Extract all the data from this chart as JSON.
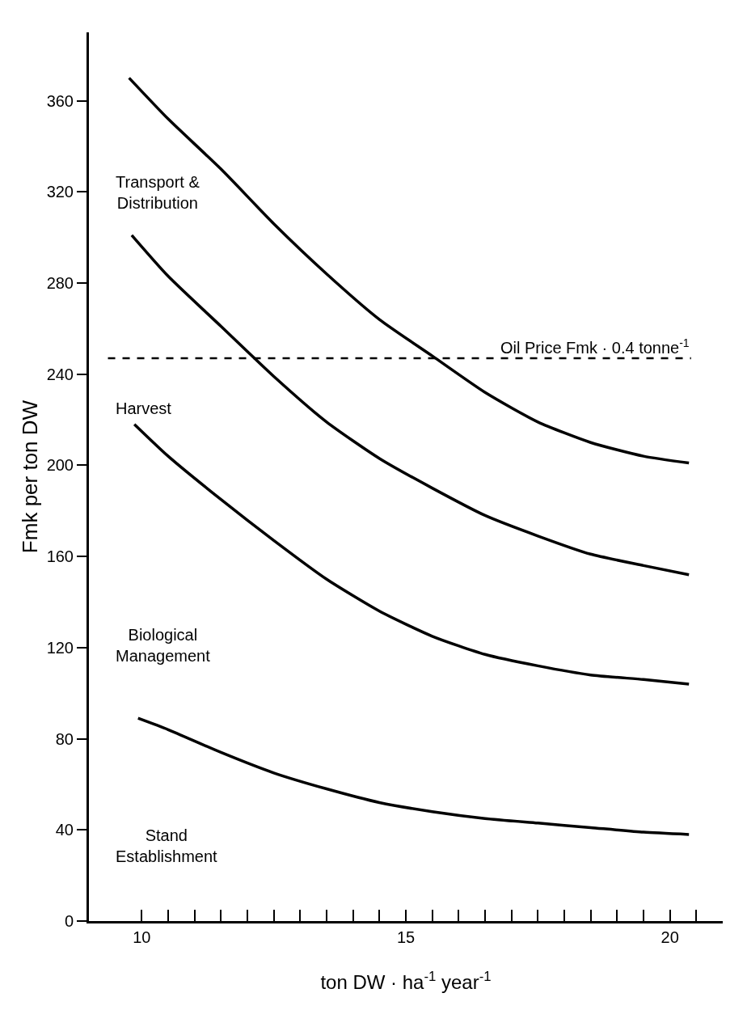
{
  "chart_data": {
    "type": "line",
    "xlabel": "ton DW · ha$^{-1}$ year$^{-1}$",
    "ylabel": "Fmk per ton DW",
    "xlim": [
      9,
      21
    ],
    "xticks": [
      10,
      {
        "value": 10.5,
        "label": null
      },
      {
        "value": 11,
        "label": null
      },
      {
        "value": 11.5,
        "label": null
      },
      {
        "value": 12,
        "label": null
      },
      {
        "value": 12.5,
        "label": null
      },
      {
        "value": 13,
        "label": null
      },
      {
        "value": 13.5,
        "label": null
      },
      {
        "value": 14,
        "label": null
      },
      {
        "value": 14.5,
        "label": null
      },
      15,
      {
        "value": 15.5,
        "label": null
      },
      {
        "value": 16,
        "label": null
      },
      {
        "value": 16.5,
        "label": null
      },
      {
        "value": 17,
        "label": null
      },
      {
        "value": 17.5,
        "label": null
      },
      {
        "value": 18,
        "label": null
      },
      {
        "value": 18.5,
        "label": null
      },
      {
        "value": 19,
        "label": null
      },
      {
        "value": 19.5,
        "label": null
      },
      20,
      {
        "value": 20.5,
        "label": null
      }
    ],
    "ylim": [
      0,
      390
    ],
    "yticks": [
      0,
      40,
      80,
      120,
      160,
      200,
      240,
      280,
      320,
      360
    ],
    "grid": false,
    "marker": "none",
    "line_style": "solid",
    "series": [
      {
        "color": "#000000",
        "x": [
          9.76,
          10.5,
          11.5,
          12.5,
          13.5,
          14.5,
          15.5,
          16.5,
          17.5,
          18.5,
          19.5,
          20.36
        ],
        "values": [
          370,
          352,
          330,
          306,
          284,
          264,
          248,
          232,
          219,
          210,
          204,
          201
        ]
      },
      {
        "color": "#000000",
        "x": [
          9.81,
          10.5,
          11.5,
          12.5,
          13.5,
          14.5,
          15.5,
          16.5,
          17.5,
          18.5,
          19.5,
          20.36
        ],
        "values": [
          301,
          283,
          261,
          239,
          219,
          203,
          190,
          178,
          169,
          161,
          156,
          152
        ]
      },
      {
        "color": "#000000",
        "x": [
          9.86,
          10.5,
          11.5,
          12.5,
          13.5,
          14.5,
          15.5,
          16.5,
          17.5,
          18.5,
          19.5,
          20.36
        ],
        "values": [
          218,
          204,
          185,
          167,
          150,
          136,
          125,
          117,
          112,
          108,
          106,
          104
        ]
      },
      {
        "color": "#000000",
        "x": [
          9.93,
          10.5,
          11.5,
          12.5,
          13.5,
          14.5,
          15.5,
          16.5,
          17.5,
          18.5,
          19.5,
          20.36
        ],
        "values": [
          89,
          84,
          74,
          65,
          58,
          52,
          48,
          45,
          43,
          41,
          39,
          38
        ]
      }
    ],
    "ref_lines": [
      {
        "axis": "y",
        "value": 247,
        "label": "Oil Price Fmk · 0.4 tonne$^{-1}$",
        "color": "#000000",
        "line_style": "dashed"
      }
    ],
    "annotations": [
      "Transport &\nDistribution",
      "Harvest",
      "Biological\nManagement",
      "Stand\nEstablishment"
    ]
  }
}
